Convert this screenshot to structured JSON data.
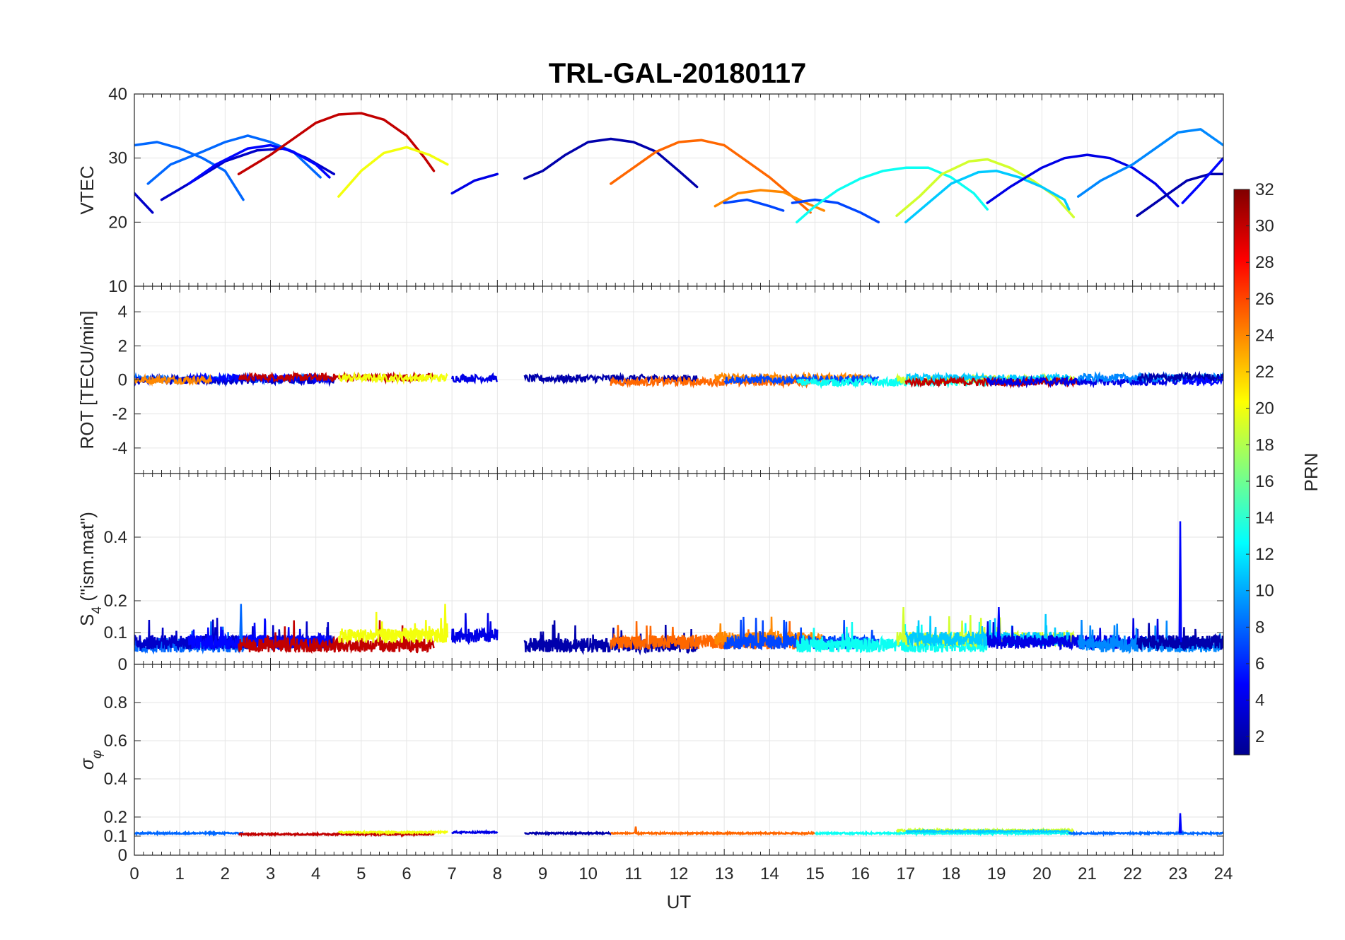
{
  "title": "TRL-GAL-20180117",
  "colors": {
    "jet": [
      "#00008f",
      "#0000ff",
      "#0080ff",
      "#00ffff",
      "#80ff80",
      "#ffff00",
      "#ff8000",
      "#ff0000",
      "#800000"
    ]
  },
  "chart_data": [
    {
      "type": "line",
      "panel": "vtec",
      "ylabel": "VTEC",
      "xlim": [
        0,
        24
      ],
      "ylim": [
        10,
        40
      ],
      "yticks": [
        10,
        20,
        30,
        40
      ],
      "ytick_labels": [
        "10",
        "20",
        "30",
        "40"
      ],
      "grid": true,
      "series": [
        {
          "prn": 8,
          "points": [
            [
              0,
              32
            ],
            [
              0.5,
              32.5
            ],
            [
              1,
              31.5
            ],
            [
              1.5,
              30
            ],
            [
              2,
              28
            ],
            [
              2.4,
              23.5
            ]
          ]
        },
        {
          "prn": 8,
          "points": [
            [
              0.3,
              26
            ],
            [
              0.8,
              29
            ],
            [
              1.5,
              31
            ],
            [
              2,
              32.5
            ],
            [
              2.5,
              33.5
            ],
            [
              3,
              32.5
            ],
            [
              3.5,
              31
            ],
            [
              4.1,
              27
            ]
          ]
        },
        {
          "prn": 3,
          "points": [
            [
              0,
              24.5
            ],
            [
              0.4,
              21.5
            ]
          ]
        },
        {
          "prn": 3,
          "points": [
            [
              0.6,
              23.5
            ],
            [
              1.2,
              26
            ],
            [
              2,
              29.5
            ],
            [
              2.7,
              31.2
            ],
            [
              3.3,
              31.5
            ],
            [
              3.8,
              30
            ],
            [
              4.4,
              27.5
            ]
          ]
        },
        {
          "prn": 5,
          "points": [
            [
              1.2,
              26
            ],
            [
              1.8,
              29
            ],
            [
              2.5,
              31.5
            ],
            [
              3,
              32
            ],
            [
              3.5,
              31
            ],
            [
              4,
              29
            ],
            [
              4.3,
              27
            ]
          ]
        },
        {
          "prn": 30,
          "points": [
            [
              2.3,
              27.5
            ],
            [
              3,
              30.5
            ],
            [
              3.5,
              33
            ],
            [
              4,
              35.5
            ],
            [
              4.5,
              36.8
            ],
            [
              5,
              37
            ],
            [
              5.5,
              36
            ],
            [
              6,
              33.5
            ],
            [
              6.4,
              30
            ],
            [
              6.6,
              28
            ]
          ]
        },
        {
          "prn": 20,
          "points": [
            [
              4.5,
              24
            ],
            [
              5,
              28
            ],
            [
              5.5,
              30.8
            ],
            [
              6,
              31.7
            ],
            [
              6.5,
              30.5
            ],
            [
              6.9,
              29
            ]
          ]
        },
        {
          "prn": 4,
          "points": [
            [
              7,
              24.5
            ],
            [
              7.5,
              26.5
            ],
            [
              8,
              27.5
            ]
          ]
        },
        {
          "prn": 2,
          "points": [
            [
              8.6,
              26.8
            ],
            [
              9,
              28
            ],
            [
              9.5,
              30.5
            ],
            [
              10,
              32.5
            ],
            [
              10.5,
              33
            ],
            [
              11,
              32.5
            ],
            [
              11.5,
              31
            ],
            [
              12,
              28
            ],
            [
              12.4,
              25.5
            ]
          ]
        },
        {
          "prn": 25,
          "points": [
            [
              10.5,
              26
            ],
            [
              11,
              28.5
            ],
            [
              11.5,
              31
            ],
            [
              12,
              32.5
            ],
            [
              12.5,
              32.8
            ],
            [
              13,
              32
            ],
            [
              13.5,
              29.5
            ],
            [
              14,
              27
            ],
            [
              14.5,
              24
            ],
            [
              14.9,
              21.5
            ]
          ]
        },
        {
          "prn": 24,
          "points": [
            [
              12.8,
              22.5
            ],
            [
              13.3,
              24.5
            ],
            [
              13.8,
              25
            ],
            [
              14.3,
              24.7
            ],
            [
              14.8,
              23
            ],
            [
              15.2,
              21.8
            ]
          ]
        },
        {
          "prn": 7,
          "points": [
            [
              13,
              23
            ],
            [
              13.5,
              23.5
            ],
            [
              14,
              22.5
            ],
            [
              14.3,
              21.8
            ]
          ]
        },
        {
          "prn": 7,
          "points": [
            [
              14.5,
              23
            ],
            [
              15,
              23.5
            ],
            [
              15.5,
              23
            ],
            [
              16,
              21.5
            ],
            [
              16.4,
              20
            ]
          ]
        },
        {
          "prn": 13,
          "points": [
            [
              14.6,
              20
            ],
            [
              15,
              22.5
            ],
            [
              15.5,
              25
            ],
            [
              16,
              26.8
            ],
            [
              16.5,
              28
            ],
            [
              17,
              28.5
            ],
            [
              17.5,
              28.5
            ],
            [
              18,
              27
            ],
            [
              18.5,
              24.5
            ],
            [
              18.8,
              22
            ]
          ]
        },
        {
          "prn": 19,
          "points": [
            [
              16.8,
              21
            ],
            [
              17.3,
              24
            ],
            [
              17.8,
              27.5
            ],
            [
              18.4,
              29.5
            ],
            [
              18.8,
              29.8
            ],
            [
              19.3,
              28.5
            ],
            [
              19.8,
              26.5
            ],
            [
              20.3,
              24
            ],
            [
              20.7,
              20.8
            ]
          ]
        },
        {
          "prn": 11,
          "points": [
            [
              17,
              20
            ],
            [
              17.5,
              23
            ],
            [
              18,
              26
            ],
            [
              18.6,
              27.8
            ],
            [
              19,
              28
            ],
            [
              19.5,
              27
            ],
            [
              20,
              25.5
            ],
            [
              20.5,
              23.5
            ],
            [
              20.6,
              22
            ]
          ]
        },
        {
          "prn": 4,
          "points": [
            [
              18.8,
              23
            ],
            [
              19.3,
              25.5
            ],
            [
              20,
              28.5
            ],
            [
              20.5,
              30
            ],
            [
              21,
              30.5
            ],
            [
              21.5,
              30
            ],
            [
              22,
              28.5
            ],
            [
              22.5,
              26
            ],
            [
              23,
              22.5
            ]
          ]
        },
        {
          "prn": 9,
          "points": [
            [
              20.8,
              24
            ],
            [
              21.3,
              26.5
            ],
            [
              22,
              29
            ],
            [
              22.5,
              31.5
            ],
            [
              23,
              34
            ],
            [
              23.5,
              34.5
            ],
            [
              24,
              32
            ]
          ]
        },
        {
          "prn": 2,
          "points": [
            [
              22.1,
              21
            ],
            [
              22.7,
              24
            ],
            [
              23.2,
              26.5
            ],
            [
              23.7,
              27.5
            ],
            [
              24,
              27.5
            ]
          ]
        },
        {
          "prn": 5,
          "points": [
            [
              23.1,
              23
            ],
            [
              23.5,
              26
            ],
            [
              24,
              30
            ]
          ]
        }
      ]
    },
    {
      "type": "line",
      "panel": "rot",
      "ylabel": "ROT [TECU/min]",
      "xlim": [
        0,
        24
      ],
      "ylim": [
        -5.5,
        5.5
      ],
      "yticks": [
        -4,
        -2,
        0,
        2,
        4
      ],
      "ytick_labels": [
        "-4",
        "-2",
        "0",
        "2",
        "4"
      ],
      "grid": true,
      "segments": [
        {
          "prn": 8,
          "x": [
            0,
            4.4
          ]
        },
        {
          "prn": 3,
          "x": [
            0,
            4.4
          ]
        },
        {
          "prn": 5,
          "x": [
            1.2,
            4.3
          ]
        },
        {
          "prn": 24,
          "x": [
            0,
            1.7
          ]
        },
        {
          "prn": 30,
          "x": [
            2.3,
            6.6
          ]
        },
        {
          "prn": 20,
          "x": [
            4.5,
            6.9
          ]
        },
        {
          "prn": 4,
          "x": [
            7,
            8
          ]
        },
        {
          "prn": 2,
          "x": [
            8.6,
            12.4
          ]
        },
        {
          "prn": 25,
          "x": [
            10.5,
            14.9
          ]
        },
        {
          "prn": 24,
          "x": [
            12.8,
            16.3
          ]
        },
        {
          "prn": 7,
          "x": [
            13,
            16.4
          ]
        },
        {
          "prn": 13,
          "x": [
            14.6,
            18.8
          ]
        },
        {
          "prn": 19,
          "x": [
            16.8,
            20.7
          ]
        },
        {
          "prn": 11,
          "x": [
            17,
            20.6
          ]
        },
        {
          "prn": 30,
          "x": [
            17,
            20.8
          ]
        },
        {
          "prn": 4,
          "x": [
            18.8,
            23
          ]
        },
        {
          "prn": 9,
          "x": [
            20.8,
            24
          ]
        },
        {
          "prn": 2,
          "x": [
            22.1,
            24
          ]
        },
        {
          "prn": 5,
          "x": [
            23.1,
            24
          ]
        }
      ]
    },
    {
      "type": "line",
      "panel": "s4",
      "ylabel": "S4 (\"ism.mat\")",
      "ylabel_main": "S",
      "ylabel_sub": "4",
      "ylabel_rest": " (\"ism.mat\")",
      "xlim": [
        0,
        24
      ],
      "ylim": [
        0,
        0.6
      ],
      "yticks": [
        0,
        0.1,
        0.2,
        0.4
      ],
      "ytick_labels": [
        "0",
        "0.1",
        "0.2",
        "0.4"
      ],
      "grid": true,
      "segments": [
        {
          "prn": 8,
          "x": [
            0,
            2.4
          ],
          "base": 0.06
        },
        {
          "prn": 3,
          "x": [
            0,
            4.4
          ],
          "base": 0.07
        },
        {
          "prn": 5,
          "x": [
            1.2,
            4.3
          ],
          "base": 0.07
        },
        {
          "prn": 30,
          "x": [
            2.3,
            6.6
          ],
          "base": 0.06
        },
        {
          "prn": 20,
          "x": [
            4.5,
            6.9
          ],
          "base": 0.09
        },
        {
          "prn": 4,
          "x": [
            7,
            8
          ],
          "base": 0.09
        },
        {
          "prn": 2,
          "x": [
            8.6,
            12.4
          ],
          "base": 0.06
        },
        {
          "prn": 25,
          "x": [
            10.5,
            14.9
          ],
          "base": 0.07
        },
        {
          "prn": 24,
          "x": [
            12.8,
            15.2
          ],
          "base": 0.08
        },
        {
          "prn": 7,
          "x": [
            13,
            16.4
          ],
          "base": 0.07
        },
        {
          "prn": 13,
          "x": [
            14.6,
            18.8
          ],
          "base": 0.06
        },
        {
          "prn": 19,
          "x": [
            16.8,
            20.7
          ],
          "base": 0.08
        },
        {
          "prn": 11,
          "x": [
            17,
            20.6
          ],
          "base": 0.08
        },
        {
          "prn": 4,
          "x": [
            18.8,
            23
          ],
          "base": 0.07
        },
        {
          "prn": 9,
          "x": [
            20.8,
            24
          ],
          "base": 0.06
        },
        {
          "prn": 2,
          "x": [
            22.1,
            24
          ],
          "base": 0.07
        }
      ],
      "spikes": [
        {
          "prn": 5,
          "x": 23.05,
          "y": 0.45
        },
        {
          "prn": 5,
          "x": 19.05,
          "y": 0.18
        },
        {
          "prn": 8,
          "x": 2.35,
          "y": 0.19
        },
        {
          "prn": 20,
          "x": 6.85,
          "y": 0.19
        },
        {
          "prn": 19,
          "x": 16.95,
          "y": 0.18
        }
      ]
    },
    {
      "type": "line",
      "panel": "sigma",
      "ylabel": "σφ",
      "ylabel_main": "σ",
      "ylabel_sub": "φ",
      "xlim": [
        0,
        24
      ],
      "ylim": [
        0,
        1
      ],
      "yticks": [
        0,
        0.1,
        0.2,
        0.4,
        0.6,
        0.8
      ],
      "ytick_labels": [
        "0",
        "0.1",
        "0.2",
        "0.4",
        "0.6",
        "0.8"
      ],
      "xticks": [
        0,
        1,
        2,
        3,
        4,
        5,
        6,
        7,
        8,
        9,
        10,
        11,
        12,
        13,
        14,
        15,
        16,
        17,
        18,
        19,
        20,
        21,
        22,
        23,
        24
      ],
      "xtick_labels": [
        "0",
        "1",
        "2",
        "3",
        "4",
        "5",
        "6",
        "7",
        "8",
        "9",
        "10",
        "11",
        "12",
        "13",
        "14",
        "15",
        "16",
        "17",
        "18",
        "19",
        "20",
        "21",
        "22",
        "23",
        "24"
      ],
      "xlabel": "UT",
      "grid": true,
      "segments": [
        {
          "prn": 8,
          "x": [
            0,
            2.4
          ],
          "base": 0.115
        },
        {
          "prn": 30,
          "x": [
            2.3,
            6.6
          ],
          "base": 0.11
        },
        {
          "prn": 20,
          "x": [
            4.5,
            6.9
          ],
          "base": 0.12
        },
        {
          "prn": 4,
          "x": [
            7,
            8
          ],
          "base": 0.12
        },
        {
          "prn": 2,
          "x": [
            8.6,
            10.5
          ],
          "base": 0.115
        },
        {
          "prn": 25,
          "x": [
            10.5,
            15
          ],
          "base": 0.115
        },
        {
          "prn": 13,
          "x": [
            15,
            20.7
          ],
          "base": 0.115
        },
        {
          "prn": 19,
          "x": [
            16.8,
            20.7
          ],
          "base": 0.13
        },
        {
          "prn": 11,
          "x": [
            17,
            20.6
          ],
          "base": 0.125
        },
        {
          "prn": 8,
          "x": [
            20.6,
            24
          ],
          "base": 0.115
        }
      ],
      "spikes": [
        {
          "prn": 5,
          "x": 23.05,
          "y": 0.22
        },
        {
          "prn": 25,
          "x": 11.05,
          "y": 0.15
        }
      ]
    }
  ],
  "colorbar": {
    "label": "PRN",
    "min": 1,
    "max": 32,
    "ticks": [
      2,
      4,
      6,
      8,
      10,
      12,
      14,
      16,
      18,
      20,
      22,
      24,
      26,
      28,
      30,
      32
    ],
    "tick_labels": [
      "2",
      "4",
      "6",
      "8",
      "10",
      "12",
      "14",
      "16",
      "18",
      "20",
      "22",
      "24",
      "26",
      "28",
      "30",
      "32"
    ]
  }
}
